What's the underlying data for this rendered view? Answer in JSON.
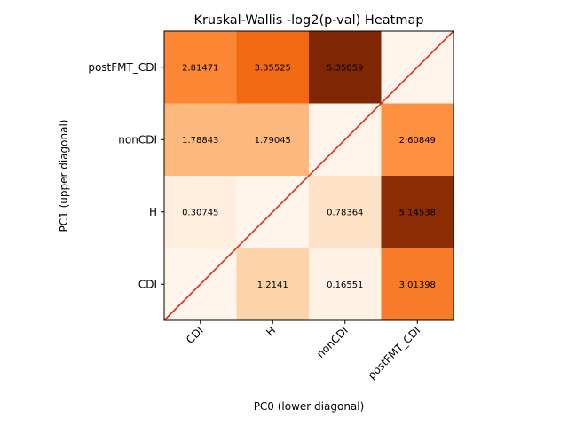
{
  "chart_data": {
    "type": "heatmap",
    "title": "Kruskal-Wallis -log2(p-val) Heatmap",
    "xlabel": "PC0 (lower diagonal)",
    "ylabel": "PC1 (upper diagonal)",
    "x_categories": [
      "CDI",
      "H",
      "nonCDI",
      "postFMT_CDI"
    ],
    "y_categories": [
      "CDI",
      "H",
      "nonCDI",
      "postFMT_CDI"
    ],
    "colormap": "Oranges",
    "value_range": [
      0,
      5.35859
    ],
    "diagonal_line_color": "#e8281e",
    "cells": [
      {
        "x": "CDI",
        "y": "postFMT_CDI",
        "value": 2.81471,
        "label": "2.81471"
      },
      {
        "x": "H",
        "y": "postFMT_CDI",
        "value": 3.35525,
        "label": "3.35525"
      },
      {
        "x": "nonCDI",
        "y": "postFMT_CDI",
        "value": 5.35859,
        "label": "5.35859"
      },
      {
        "x": "postFMT_CDI",
        "y": "postFMT_CDI",
        "value": 0,
        "label": ""
      },
      {
        "x": "CDI",
        "y": "nonCDI",
        "value": 1.78843,
        "label": "1.78843"
      },
      {
        "x": "H",
        "y": "nonCDI",
        "value": 1.79045,
        "label": "1.79045"
      },
      {
        "x": "nonCDI",
        "y": "nonCDI",
        "value": 0,
        "label": ""
      },
      {
        "x": "postFMT_CDI",
        "y": "nonCDI",
        "value": 2.60849,
        "label": "2.60849"
      },
      {
        "x": "CDI",
        "y": "H",
        "value": 0.30745,
        "label": "0.30745"
      },
      {
        "x": "H",
        "y": "H",
        "value": 0,
        "label": ""
      },
      {
        "x": "nonCDI",
        "y": "H",
        "value": 0.78364,
        "label": "0.78364"
      },
      {
        "x": "postFMT_CDI",
        "y": "H",
        "value": 5.14538,
        "label": "5.14538"
      },
      {
        "x": "CDI",
        "y": "CDI",
        "value": 0,
        "label": ""
      },
      {
        "x": "H",
        "y": "CDI",
        "value": 1.2141,
        "label": "1.2141"
      },
      {
        "x": "nonCDI",
        "y": "CDI",
        "value": 0.16551,
        "label": "0.16551"
      },
      {
        "x": "postFMT_CDI",
        "y": "CDI",
        "value": 3.01398,
        "label": "3.01398"
      }
    ]
  }
}
